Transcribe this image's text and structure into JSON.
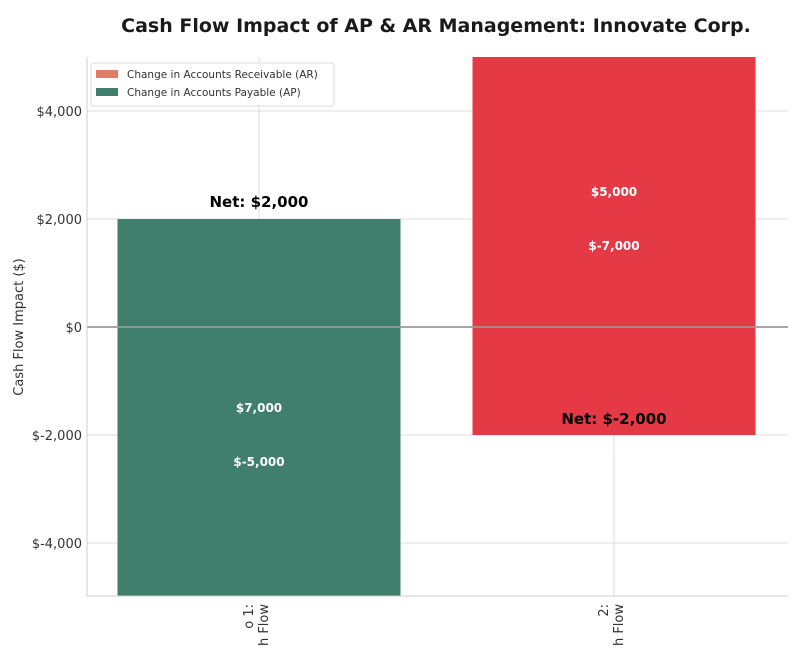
{
  "chart_data": {
    "type": "bar",
    "title": "Cash Flow Impact of AP & AR Management: Innovate Corp.",
    "xlabel": "",
    "ylabel": "Cash Flow Impact ($)",
    "ylim": [
      -5000,
      5000
    ],
    "yticks": [
      -4000,
      -2000,
      0,
      2000,
      4000
    ],
    "ytick_labels": [
      "$-4,000",
      "$-2,000",
      "$0",
      "$2,000",
      "$4,000"
    ],
    "grid": true,
    "legend_position": "top-left",
    "legend": [
      {
        "label": "Change in Accounts Receivable (AR)",
        "color": "#e07b67"
      },
      {
        "label": "Change in Accounts Payable (AP)",
        "color": "#3f7f6b"
      }
    ],
    "categories": [
      {
        "label_lines": [
          "o 1:",
          "h Flow"
        ]
      },
      {
        "label_lines": [
          "2:",
          "h Flow"
        ]
      }
    ],
    "bars": [
      {
        "top": 2000,
        "bottom": -5000,
        "color": "#3f7f6b",
        "ar_value": 7000,
        "ap_value": -5000,
        "ar_label": "$7,000",
        "ap_label": "$-5,000",
        "net": 2000,
        "net_label": "Net: $2,000"
      },
      {
        "top": 5000,
        "bottom": -2000,
        "color": "#e63946",
        "ar_value": 5000,
        "ap_value": -7000,
        "ar_label": "$5,000",
        "ap_label": "$-7,000",
        "net": -2000,
        "net_label": "Net: $-2,000"
      }
    ]
  }
}
